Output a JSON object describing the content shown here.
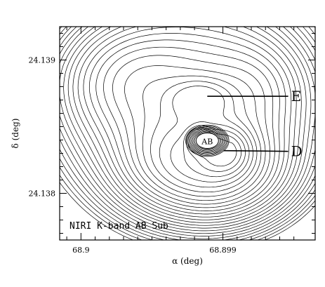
{
  "chart_data": {
    "type": "contour",
    "xlabel": "α (deg)",
    "ylabel": "δ (deg)",
    "xlim": [
      68.90015,
      68.89835
    ],
    "ylim": [
      24.13765,
      24.13925
    ],
    "x_ticks": [
      68.9,
      68.899
    ],
    "x_tick_labels": [
      "68.9",
      "68.899"
    ],
    "y_ticks": [
      24.138,
      24.139
    ],
    "y_tick_labels": [
      "24.138",
      "24.139"
    ],
    "annotation": "NIRI K-band AB Sub",
    "sources": [
      {
        "label": "AB",
        "ra": 68.89911,
        "dec": 24.138395
      },
      {
        "label": "E",
        "ra": 68.89911,
        "dec": 24.138728
      },
      {
        "label": "D",
        "ra": 68.898995,
        "dec": 24.13832
      }
    ],
    "pointer_labels": [
      {
        "label": "E",
        "ra": 68.89854,
        "dec": 24.138728
      },
      {
        "label": "D",
        "ra": 68.89854,
        "dec": 24.138315
      }
    ],
    "grid": false,
    "legend": "none"
  }
}
